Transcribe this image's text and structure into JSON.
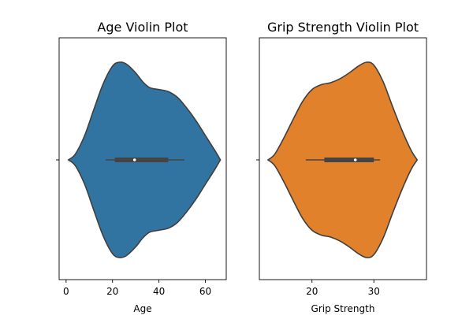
{
  "chart_data": [
    {
      "type": "violin",
      "title": "Age Violin Plot",
      "xlabel": "Age",
      "ylabel": "",
      "xlim": [
        -3,
        69
      ],
      "xticks": [
        0,
        20,
        40,
        60
      ],
      "color": "#3274a1",
      "median_color": "#ffffff",
      "box_color": "#444444",
      "density": [
        [
          1,
          0.0
        ],
        [
          4,
          0.06
        ],
        [
          8,
          0.25
        ],
        [
          12,
          0.52
        ],
        [
          16,
          0.78
        ],
        [
          20,
          0.96
        ],
        [
          23,
          1.0
        ],
        [
          26,
          0.98
        ],
        [
          30,
          0.89
        ],
        [
          33,
          0.8
        ],
        [
          36,
          0.74
        ],
        [
          40,
          0.72
        ],
        [
          44,
          0.7
        ],
        [
          48,
          0.64
        ],
        [
          52,
          0.53
        ],
        [
          56,
          0.4
        ],
        [
          60,
          0.25
        ],
        [
          64,
          0.1
        ],
        [
          66.5,
          0.0
        ]
      ],
      "whisker": [
        17,
        51
      ],
      "quartiles": [
        21,
        44
      ],
      "median": 29.5
    },
    {
      "type": "violin",
      "title": "Grip Strength Violin Plot",
      "xlabel": "Grip Strength",
      "ylabel": "",
      "xlim": [
        11.5,
        38.5
      ],
      "xticks": [
        20,
        30
      ],
      "color": "#e1812c",
      "median_color": "#ffffff",
      "box_color": "#444444",
      "density": [
        [
          12.9,
          0.0
        ],
        [
          14,
          0.06
        ],
        [
          15.5,
          0.23
        ],
        [
          17,
          0.42
        ],
        [
          18.5,
          0.6
        ],
        [
          20,
          0.72
        ],
        [
          21.5,
          0.77
        ],
        [
          23,
          0.79
        ],
        [
          24.5,
          0.83
        ],
        [
          26,
          0.89
        ],
        [
          27.5,
          0.96
        ],
        [
          28.8,
          1.0
        ],
        [
          30,
          0.97
        ],
        [
          31.5,
          0.8
        ],
        [
          33,
          0.55
        ],
        [
          34.5,
          0.31
        ],
        [
          36,
          0.1
        ],
        [
          37,
          0.0
        ]
      ],
      "whisker": [
        19,
        31
      ],
      "quartiles": [
        22,
        30
      ],
      "median": 27
    }
  ]
}
